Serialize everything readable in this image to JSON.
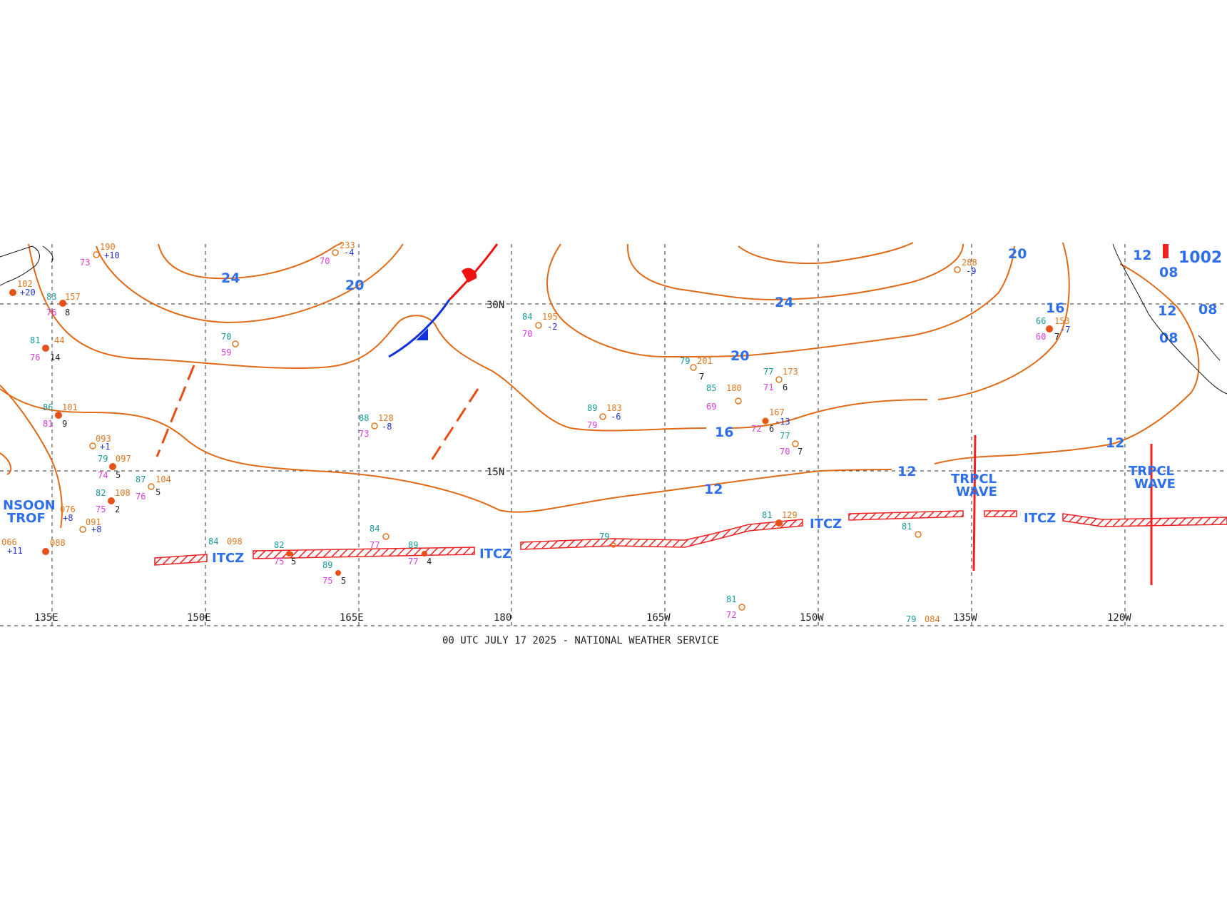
{
  "longitude_labels": [
    "135E",
    "150E",
    "165E",
    "180",
    "165W",
    "150W",
    "135W",
    "120W"
  ],
  "latitude_labels": [
    "30N",
    "15N"
  ],
  "isobar_labels": [
    "24",
    "20",
    "24",
    "20",
    "16",
    "12",
    "12",
    "12",
    "16",
    "20",
    "12",
    "08",
    "12",
    "08",
    "08"
  ],
  "pressure_center_value": "1002",
  "features": {
    "itcz": "ITCZ",
    "monsoon_trough_line1": "NSOON",
    "monsoon_trough_line2": "TROF",
    "tropical_wave_line1": "TRPCL",
    "tropical_wave_line2": "WAVE"
  },
  "station_obs": [
    {
      "t": "84",
      "p": "195",
      "d": "70",
      "tend": "-2"
    },
    {
      "t": "70",
      "d": "59"
    },
    {
      "t": "88",
      "p": "128",
      "d": "73",
      "tend": "-8"
    },
    {
      "t": "89",
      "p": "183",
      "d": "79",
      "tend": "-6"
    },
    {
      "t": "79",
      "p": "201",
      "w": "7"
    },
    {
      "t": "77",
      "p": "173",
      "d": "71",
      "w": "6"
    },
    {
      "t": "85",
      "p": "180",
      "d": "69"
    },
    {
      "p": "167",
      "d": "72",
      "w": "6",
      "tend": "-13"
    },
    {
      "t": "77",
      "d": "70",
      "w": "7"
    },
    {
      "p": "153",
      "d": "60",
      "w": "7",
      "t": "66",
      "tend": "-7"
    },
    {
      "p": "288",
      "tend": "-9"
    },
    {
      "t": "81",
      "p": "129"
    },
    {
      "t": "84",
      "p": "098"
    },
    {
      "t": "79",
      "p": "084"
    },
    {
      "t": "83",
      "p": "157",
      "d": "76",
      "w": "8"
    },
    {
      "t": "81",
      "p": "44",
      "d": "76",
      "w": "14"
    },
    {
      "t": "86",
      "p": "101",
      "d": "81",
      "w": "9"
    },
    {
      "p": "093",
      "tend": "+1"
    },
    {
      "t": "79",
      "p": "097",
      "d": "74",
      "w": "5"
    },
    {
      "t": "87",
      "p": "104",
      "d": "76",
      "w": "5"
    },
    {
      "t": "82",
      "p": "108",
      "d": "75",
      "w": "2"
    },
    {
      "p": "076",
      "tend": "+8"
    },
    {
      "p": "091",
      "tend": "+8"
    },
    {
      "p": "066",
      "tend": "+11"
    },
    {
      "p": "088"
    },
    {
      "t": "82",
      "d": "75"
    },
    {
      "t": "84",
      "d": "77"
    },
    {
      "t": "89",
      "d": "77",
      "w": "4"
    },
    {
      "t": "86",
      "d": "79",
      "w": "5"
    },
    {
      "t": "89",
      "d": "75",
      "w": "5"
    },
    {
      "t": "81",
      "d": "72"
    },
    {
      "t": "81"
    },
    {
      "t": "79"
    },
    {
      "p": "102",
      "tend": "+20"
    },
    {
      "p": "233",
      "tend": "-4",
      "d": "70"
    },
    {
      "p": "190",
      "d": "73",
      "tend": "+10"
    }
  ],
  "footer": "00 UTC JULY 17 2025 - NATIONAL WEATHER SERVICE",
  "colors": {
    "isobar": "#e06a18",
    "label": "#2f6fe8",
    "itcz": "#ee2222",
    "cold_front": "#1133dd",
    "warm_front": "#ee1111"
  }
}
